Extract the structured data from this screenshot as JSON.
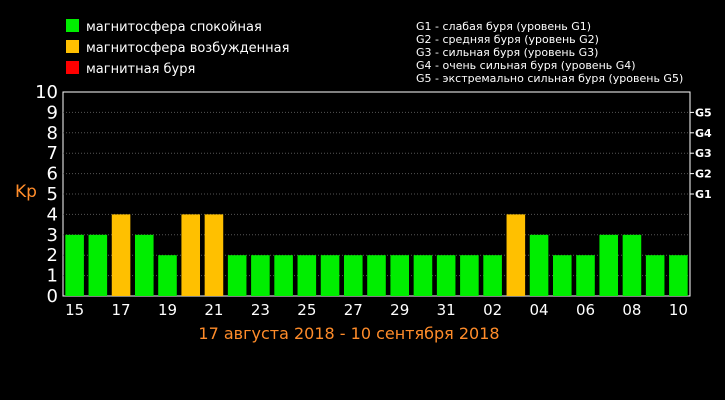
{
  "legend": [
    {
      "label": "магнитосфера спокойная",
      "color": "#00ee00"
    },
    {
      "label": "магнитосфера возбужденная",
      "color": "#ffc000"
    },
    {
      "label": "магнитная буря",
      "color": "#ff0000"
    }
  ],
  "storm_levels": [
    "G1 - слабая буря (уровень G1)",
    "G2 - средняя буря (уровень G2)",
    "G3 - сильная буря (уровень G3)",
    "G4 - очень сильная буря (уровень G4)",
    "G5 - экстремально сильная буря (уровень G5)"
  ],
  "date_range": "17 августа 2018 - 10 сентября 2018",
  "chart_data": {
    "type": "bar",
    "ylabel": "Kp",
    "ylim": [
      0,
      10
    ],
    "yticks": [
      "0",
      "1",
      "2",
      "3",
      "4",
      "5",
      "6",
      "7",
      "8",
      "9",
      "10"
    ],
    "right_ticks": [
      {
        "label": "G1",
        "value": 5
      },
      {
        "label": "G2",
        "value": 6
      },
      {
        "label": "G3",
        "value": 7
      },
      {
        "label": "G4",
        "value": 8
      },
      {
        "label": "G5",
        "value": 9
      }
    ],
    "xtick_labels": [
      "15",
      "17",
      "19",
      "21",
      "23",
      "25",
      "27",
      "29",
      "31",
      "02",
      "04",
      "06",
      "08",
      "10"
    ],
    "xtick_every": 2,
    "values": [
      3,
      3,
      4,
      3,
      2,
      4,
      4,
      2,
      2,
      2,
      2,
      2,
      2,
      2,
      2,
      2,
      2,
      2,
      2,
      4,
      3,
      2,
      2,
      3,
      3,
      2,
      2
    ],
    "colors": [
      "#00ee00",
      "#00ee00",
      "#ffc000",
      "#00ee00",
      "#00ee00",
      "#ffc000",
      "#ffc000",
      "#00ee00",
      "#00ee00",
      "#00ee00",
      "#00ee00",
      "#00ee00",
      "#00ee00",
      "#00ee00",
      "#00ee00",
      "#00ee00",
      "#00ee00",
      "#00ee00",
      "#00ee00",
      "#ffc000",
      "#00ee00",
      "#00ee00",
      "#00ee00",
      "#00ee00",
      "#00ee00",
      "#00ee00",
      "#00ee00"
    ],
    "grid": true
  }
}
